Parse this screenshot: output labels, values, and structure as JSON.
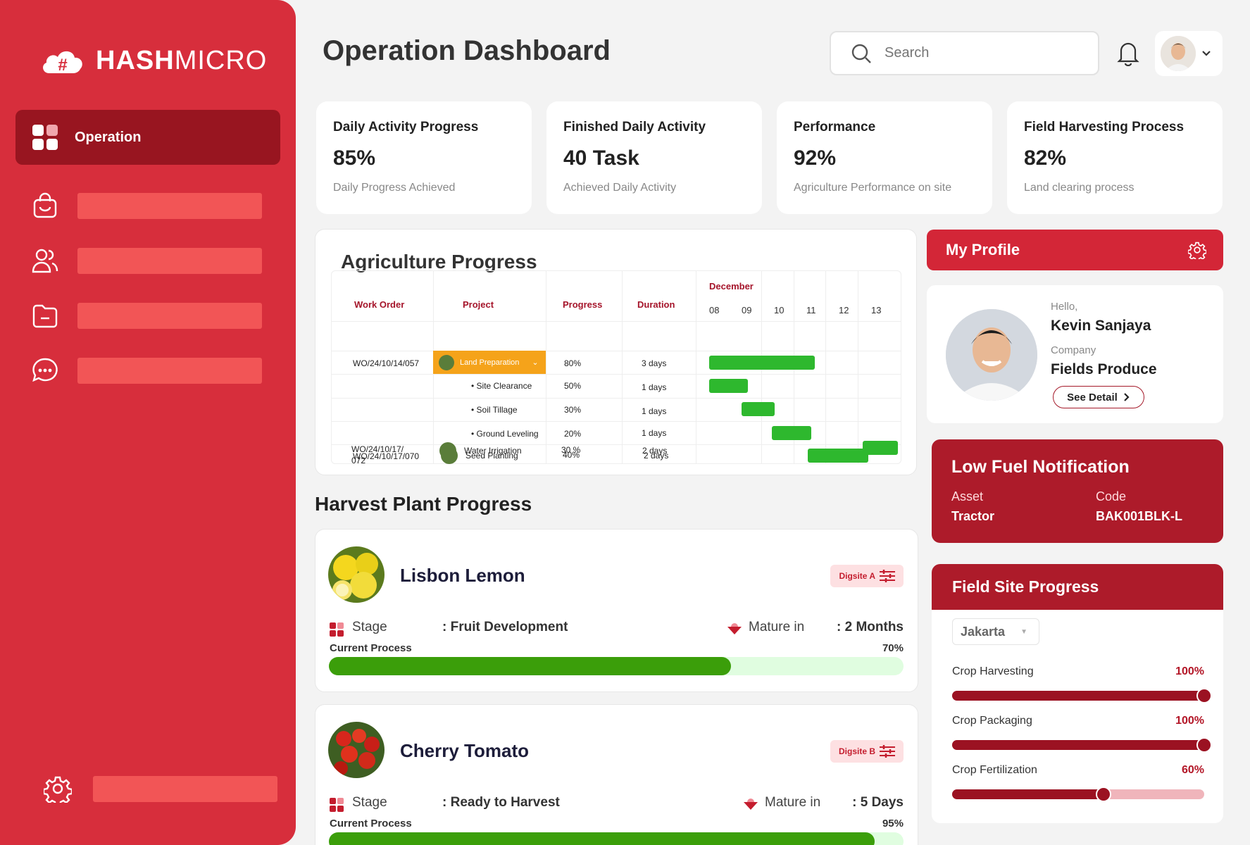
{
  "brand": {
    "name_bold": "HASH",
    "name_thin": "MICRO"
  },
  "sidebar": {
    "active_label": "Operation",
    "items": [
      {
        "icon": "shopping-bag-icon"
      },
      {
        "icon": "users-icon"
      },
      {
        "icon": "folder-icon"
      },
      {
        "icon": "chat-icon"
      }
    ],
    "settings_icon": "gear-icon"
  },
  "header": {
    "title": "Operation Dashboard",
    "search_placeholder": "Search"
  },
  "stats": [
    {
      "title": "Daily Activity Progress",
      "value": "85%",
      "subtitle": "Daily Progress Achieved"
    },
    {
      "title": "Finished Daily Activity",
      "value": "40 Task",
      "subtitle": "Achieved Daily Activity"
    },
    {
      "title": "Performance",
      "value": "92%",
      "subtitle": "Agriculture Performance on site"
    },
    {
      "title": "Field Harvesting Process",
      "value": "82%",
      "subtitle": "Land clearing process"
    }
  ],
  "agriculture": {
    "title": "Agriculture Progress",
    "columns": [
      "Work Order",
      "Project",
      "Progress",
      "Duration"
    ],
    "month": "December",
    "days": [
      "08",
      "09",
      "10",
      "11",
      "12",
      "13"
    ],
    "rows": [
      {
        "wo": "WO/24/10/14/057",
        "project": "Land Preparation",
        "progress": "80%",
        "duration": "3 days"
      },
      {
        "wo": "",
        "project": "Site Clearance",
        "progress": "50%",
        "duration": "1 days"
      },
      {
        "wo": "",
        "project": "Soil Tillage",
        "progress": "30%",
        "duration": "1 days"
      },
      {
        "wo": "",
        "project": "Ground Leveling",
        "progress": "20%",
        "duration": "1 days"
      },
      {
        "wo": "WO/24/10/17/070",
        "project": "Seed Planting",
        "progress": "40%",
        "duration": "2 days"
      },
      {
        "wo": "WO/24/10/17/",
        "wo2": "072",
        "project": "Water Irrigation",
        "progress": "30 %",
        "duration": "2 days"
      }
    ]
  },
  "harvest": {
    "title": "Harvest Plant Progress",
    "items": [
      {
        "name": "Lisbon Lemon",
        "tag": "Digsite A",
        "stage_label": "Stage",
        "stage": ": Fruit Development",
        "mature_label": "Mature in",
        "mature": ": 2 Months",
        "process_label": "Current Process",
        "process_pct": "70%",
        "process": 0.7
      },
      {
        "name": "Cherry Tomato",
        "tag": "Digsite B",
        "stage_label": "Stage",
        "stage": ": Ready to Harvest",
        "mature_label": "Mature in",
        "mature": ": 5 Days",
        "process_label": "Current Process",
        "process_pct": "95%",
        "process": 0.95
      }
    ]
  },
  "profile": {
    "title": "My Profile",
    "hello": "Hello,",
    "name": "Kevin Sanjaya",
    "company_label": "Company",
    "company": "Fields Produce",
    "button": "See Detail"
  },
  "fuel": {
    "title": "Low Fuel Notification",
    "asset_label": "Asset",
    "asset": "Tractor",
    "code_label": "Code",
    "code": "BAK001BLK-L"
  },
  "field": {
    "title": "Field Site Progress",
    "location": "Jakarta",
    "items": [
      {
        "label": "Crop Harvesting",
        "pct": "100%",
        "value": 1.0
      },
      {
        "label": "Crop Packaging",
        "pct": "100%",
        "value": 1.0
      },
      {
        "label": "Crop Fertilization",
        "pct": "60%",
        "value": 0.6
      }
    ]
  },
  "colors": {
    "brand_red": "#d72e3c",
    "dark_red": "#ad1b2a",
    "green": "#3b9e0a"
  }
}
